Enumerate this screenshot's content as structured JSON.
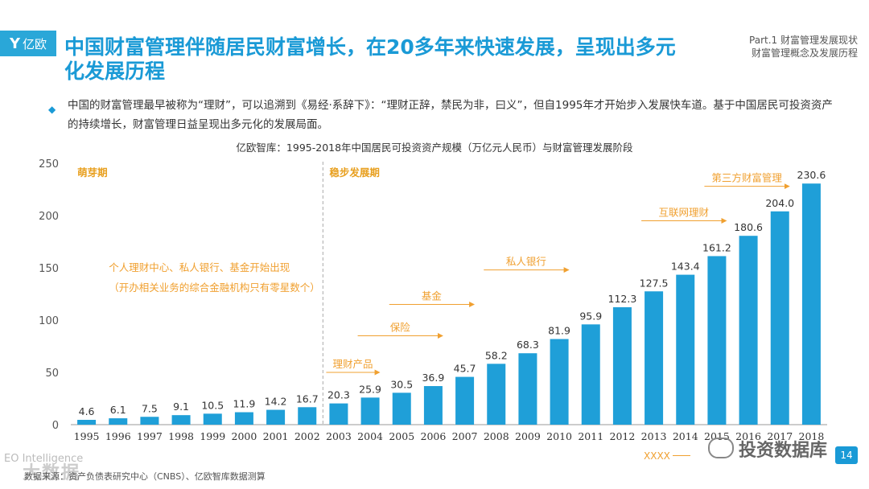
{
  "header": {
    "logo_text": "亿欧",
    "title": "中国财富管理伴随居民财富增长，在20多年来快速发展，呈现出多元化发展历程",
    "part_line1": "Part.1 财富管理发展现状",
    "part_line2": "财富管理概念及发展历程"
  },
  "bullet": {
    "text": "中国的财富管理最早被称为“理财”，可以追溯到《易经·系辞下》：“理财正辞，禁民为非，曰义”，但自1995年才开始步入发展快车道。基于中国居民可投资资产的持续增长，财富管理日益呈现出多元化的发展局面。"
  },
  "footer": {
    "eo_text": "EO Intelligence",
    "watermark_left": "大数据",
    "source": "数据来源：资产负债表研究中心（CNBS）、亿欧智库数据测算",
    "watermark_right": "投资数据库",
    "page_number": "14",
    "xxxx_label": "XXXX"
  },
  "colors": {
    "accent": "#1a9ad6",
    "bar": "#1f9fd8",
    "phase_label": "#e8a020",
    "annotation": "#f0a030"
  },
  "chart_data": {
    "type": "bar",
    "title": "亿欧智库：1995-2018年中国居民可投资资产规模（万亿元人民币）与财富管理发展阶段",
    "categories": [
      "1995",
      "1996",
      "1997",
      "1998",
      "1999",
      "2000",
      "2001",
      "2002",
      "2003",
      "2004",
      "2005",
      "2006",
      "2007",
      "2008",
      "2009",
      "2010",
      "2011",
      "2012",
      "2013",
      "2014",
      "2015",
      "2016",
      "2017",
      "2018"
    ],
    "values": [
      4.6,
      6.1,
      7.5,
      9.1,
      10.5,
      11.9,
      14.2,
      16.7,
      20.3,
      25.9,
      30.5,
      36.9,
      45.7,
      58.2,
      68.3,
      81.9,
      95.9,
      112.3,
      127.5,
      143.4,
      161.2,
      180.6,
      204.0,
      230.6
    ],
    "value_labels": [
      "4.6",
      "6.1",
      "7.5",
      "9.1",
      "10.5",
      "11.9",
      "14.2",
      "16.7",
      "20.3",
      "25.9",
      "30.5",
      "36.9",
      "45.7",
      "58.2",
      "68.3",
      "81.9",
      "95.9",
      "112.3",
      "127.5",
      "143.4",
      "161.2",
      "180.6",
      "204.0",
      "230.6"
    ],
    "ylim": [
      0,
      250
    ],
    "yticks": [
      0,
      50,
      100,
      150,
      200,
      250
    ],
    "xlabel": "",
    "ylabel": "",
    "grid": false,
    "phases": [
      {
        "label": "萌芽期",
        "start": "1995"
      },
      {
        "label": "稳步发展期",
        "start": "2003"
      }
    ],
    "phase_divider_after": "2002",
    "early_note": {
      "line1": "个人理财中心、私人银行、基金开始出现",
      "line2": "（开办相关业务的综合金融机构只有零星数个）",
      "year": "1996",
      "value": 147
    },
    "annotations": [
      {
        "label": "理财产品",
        "start": "2003",
        "end": "2004",
        "value": 50
      },
      {
        "label": "保险",
        "start": "2004",
        "end": "2006",
        "value": 85
      },
      {
        "label": "基金",
        "start": "2005",
        "end": "2007",
        "value": 115
      },
      {
        "label": "私人银行",
        "start": "2008",
        "end": "2010",
        "value": 148
      },
      {
        "label": "互联网理财",
        "start": "2013",
        "end": "2015",
        "value": 195
      },
      {
        "label": "第三方财富管理",
        "start": "2015",
        "end": "2017",
        "value": 228
      }
    ]
  }
}
